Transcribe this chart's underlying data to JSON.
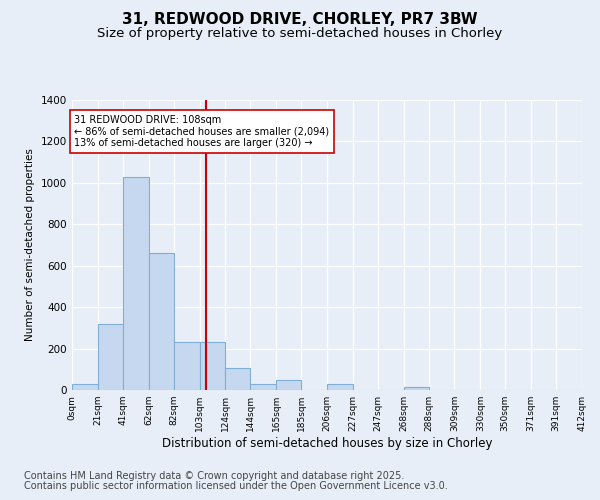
{
  "title1": "31, REDWOOD DRIVE, CHORLEY, PR7 3BW",
  "title2": "Size of property relative to semi-detached houses in Chorley",
  "xlabel": "Distribution of semi-detached houses by size in Chorley",
  "ylabel": "Number of semi-detached properties",
  "footnote1": "Contains HM Land Registry data © Crown copyright and database right 2025.",
  "footnote2": "Contains public sector information licensed under the Open Government Licence v3.0.",
  "bin_edges": [
    0,
    21,
    41,
    62,
    82,
    103,
    124,
    144,
    165,
    185,
    206,
    227,
    247,
    268,
    288,
    309,
    330,
    350,
    371,
    391,
    412
  ],
  "bin_labels": [
    "0sqm",
    "21sqm",
    "41sqm",
    "62sqm",
    "82sqm",
    "103sqm",
    "124sqm",
    "144sqm",
    "165sqm",
    "185sqm",
    "206sqm",
    "227sqm",
    "247sqm",
    "268sqm",
    "288sqm",
    "309sqm",
    "330sqm",
    "350sqm",
    "371sqm",
    "391sqm",
    "412sqm"
  ],
  "counts": [
    30,
    320,
    1030,
    660,
    230,
    230,
    105,
    30,
    50,
    0,
    30,
    0,
    0,
    15,
    0,
    0,
    0,
    0,
    0,
    0
  ],
  "bar_color": "#c5d8ef",
  "bar_edge_color": "#7fafd4",
  "vline_x": 108,
  "vline_color": "#cc0000",
  "annotation_text": "31 REDWOOD DRIVE: 108sqm\n← 86% of semi-detached houses are smaller (2,094)\n13% of semi-detached houses are larger (320) →",
  "annotation_box_color": "#ffffff",
  "annotation_box_edge": "#cc0000",
  "ylim": [
    0,
    1400
  ],
  "background_color": "#e8eef8",
  "plot_bg_color": "#e8eef8",
  "grid_color": "#ffffff",
  "title1_fontsize": 11,
  "title2_fontsize": 9.5,
  "footnote_fontsize": 7
}
